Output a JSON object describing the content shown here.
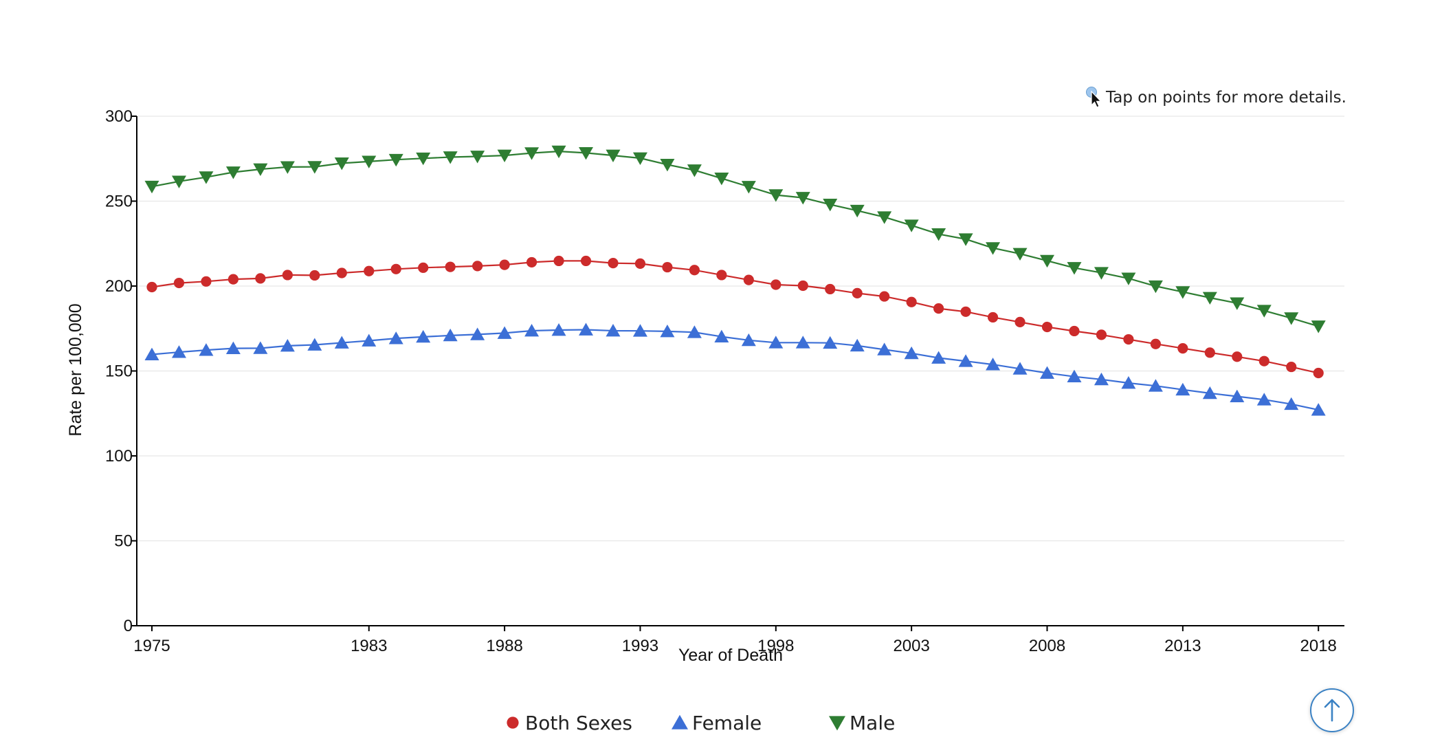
{
  "hint": {
    "text": "Tap on points for more details."
  },
  "chart_data": {
    "type": "line",
    "title": "",
    "xlabel": "Year of Death",
    "ylabel": "Rate per 100,000",
    "xlim": [
      1975,
      2018
    ],
    "ylim": [
      0,
      300
    ],
    "x_ticks": [
      1975,
      1983,
      1988,
      1993,
      1998,
      2003,
      2008,
      2013,
      2018
    ],
    "y_ticks": [
      0,
      50,
      100,
      150,
      200,
      250,
      300
    ],
    "grid": "horizontal",
    "legend_position": "bottom",
    "x": [
      1975,
      1976,
      1977,
      1978,
      1979,
      1980,
      1981,
      1982,
      1983,
      1984,
      1985,
      1986,
      1987,
      1988,
      1989,
      1990,
      1991,
      1992,
      1993,
      1994,
      1995,
      1996,
      1997,
      1998,
      1999,
      2000,
      2001,
      2002,
      2003,
      2004,
      2005,
      2006,
      2007,
      2008,
      2009,
      2010,
      2011,
      2012,
      2013,
      2014,
      2015,
      2016,
      2017,
      2018
    ],
    "series": [
      {
        "name": "Male",
        "color": "#2e7d32",
        "marker": "triangle-down",
        "values": [
          258.6,
          261.6,
          264.1,
          267.0,
          268.8,
          270.1,
          270.2,
          272.3,
          273.3,
          274.4,
          275.2,
          275.9,
          276.3,
          276.9,
          278.3,
          279.3,
          278.4,
          276.9,
          275.3,
          271.5,
          268.2,
          263.4,
          258.5,
          253.6,
          252.0,
          248.0,
          244.4,
          240.6,
          235.7,
          230.6,
          227.6,
          222.4,
          219.0,
          214.9,
          210.7,
          207.8,
          204.5,
          199.9,
          196.5,
          193.1,
          189.9,
          185.5,
          181.1,
          176.3
        ]
      },
      {
        "name": "Both Sexes",
        "color": "#cc2b2b",
        "marker": "circle",
        "values": [
          199.4,
          201.8,
          202.7,
          204.0,
          204.5,
          206.5,
          206.3,
          207.7,
          208.8,
          210.0,
          210.8,
          211.3,
          211.8,
          212.5,
          214.0,
          214.8,
          214.8,
          213.5,
          213.2,
          211.1,
          209.4,
          206.5,
          203.6,
          200.8,
          200.2,
          198.2,
          195.8,
          193.9,
          190.6,
          186.8,
          184.9,
          181.6,
          178.8,
          175.9,
          173.5,
          171.3,
          168.6,
          165.9,
          163.3,
          160.8,
          158.4,
          155.8,
          152.4,
          148.8
        ]
      },
      {
        "name": "Female",
        "color": "#3c6fd6",
        "marker": "triangle-up",
        "values": [
          159.7,
          161.1,
          162.3,
          163.3,
          163.4,
          164.8,
          165.4,
          166.6,
          167.8,
          169.2,
          170.1,
          170.9,
          171.5,
          172.3,
          173.7,
          174.1,
          174.3,
          173.7,
          173.6,
          173.3,
          172.8,
          170.2,
          168.1,
          166.7,
          166.7,
          166.5,
          164.9,
          162.6,
          160.4,
          157.7,
          155.8,
          153.8,
          151.3,
          148.8,
          146.7,
          145.0,
          142.9,
          141.2,
          139.0,
          136.9,
          135.0,
          133.1,
          130.5,
          127.1
        ]
      }
    ],
    "legend_order": [
      "Both Sexes",
      "Female",
      "Male"
    ]
  },
  "icons": {
    "hint": "pointer-hand-icon",
    "scroll_top": "arrow-up-icon"
  },
  "colors": {
    "grid": "#e6e6e6",
    "axis": "#000000",
    "scroll_button": "#3b82c4"
  }
}
